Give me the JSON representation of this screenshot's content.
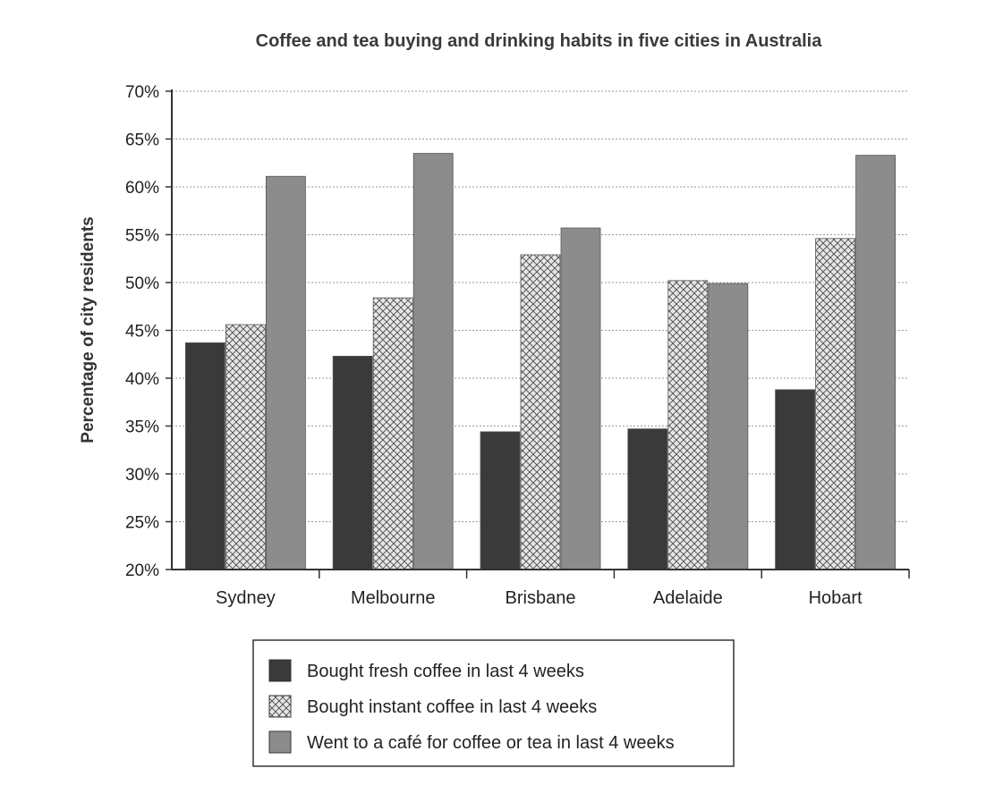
{
  "chart_data": {
    "type": "bar",
    "title": "Coffee and tea buying and drinking habits in five cities in Australia",
    "ylabel": "Percentage of city residents",
    "xlabel": "",
    "ylim": [
      20,
      70
    ],
    "y_ticks": [
      20,
      25,
      30,
      35,
      40,
      45,
      50,
      55,
      60,
      65,
      70
    ],
    "y_tick_labels": [
      "20%",
      "25%",
      "30%",
      "35%",
      "40%",
      "45%",
      "50%",
      "55%",
      "60%",
      "65%",
      "70%"
    ],
    "grid": true,
    "legend_position": "bottom",
    "categories": [
      "Sydney",
      "Melbourne",
      "Brisbane",
      "Adelaide",
      "Hobart"
    ],
    "series": [
      {
        "name": "Bought fresh coffee in last 4 weeks",
        "values": [
          43.7,
          42.3,
          34.4,
          34.7,
          38.8
        ],
        "color": "#3a3a3a",
        "fill": "solid"
      },
      {
        "name": "Bought instant coffee in last 4 weeks",
        "values": [
          45.6,
          48.4,
          52.9,
          50.2,
          54.6
        ],
        "color": "#d9d9d9",
        "fill": "crosshatch"
      },
      {
        "name": "Went to a café for coffee or tea in last 4 weeks",
        "values": [
          61.1,
          63.5,
          55.7,
          49.9,
          63.3
        ],
        "color": "#8c8c8c",
        "fill": "solid"
      }
    ]
  }
}
